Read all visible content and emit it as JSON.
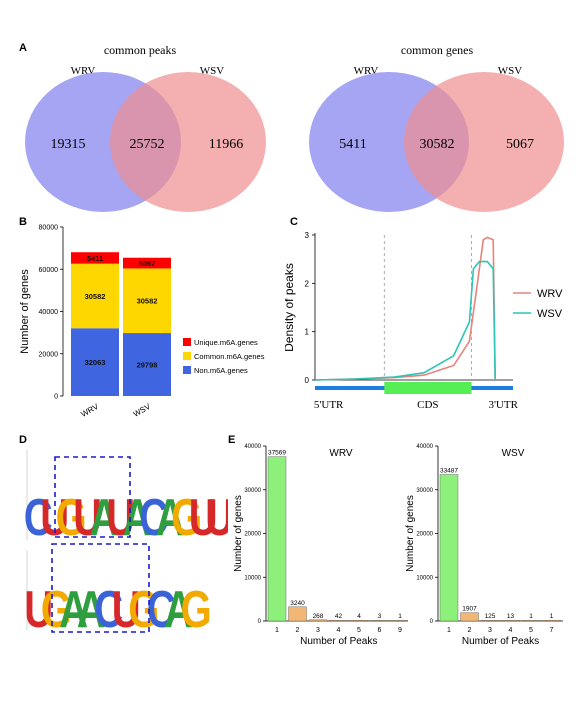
{
  "panels": {
    "a": "A",
    "b": "B",
    "c": "C",
    "d": "D",
    "e": "E"
  },
  "venn": [
    {
      "title": "common peaks",
      "left_label": "WRV",
      "right_label": "WSV",
      "left_only": "19315",
      "overlap": "25752",
      "right_only": "11966"
    },
    {
      "title": "common genes",
      "left_label": "WRV",
      "right_label": "WSV",
      "left_only": "5411",
      "overlap": "30582",
      "right_only": "5067"
    }
  ],
  "colors": {
    "wrv_venn": "#8f8ff0",
    "wsv_venn": "#f08f8f",
    "unique": "#ff0000",
    "common": "#ffd700",
    "non": "#3f66e0",
    "wrv_line": "#e8837a",
    "wsv_line": "#2ec4b6",
    "cds": "#55ee55",
    "utr": "#1f7fe0",
    "peak_bar": "#8cf07a",
    "peak_bar_alt": "#f2b774"
  },
  "chart_data": [
    {
      "type": "bar",
      "stacked": true,
      "categories": [
        "WRV",
        "WSV"
      ],
      "series": [
        {
          "name": "Non.m6A.genes",
          "values": [
            32063,
            29798
          ],
          "labels": [
            "32063",
            "29798"
          ]
        },
        {
          "name": "Common.m6A.genes",
          "values": [
            30582,
            30582
          ],
          "labels": [
            "30582",
            "30582"
          ]
        },
        {
          "name": "Unique.m6A.genes",
          "values": [
            5411,
            5067
          ],
          "labels": [
            "5411",
            "5067"
          ]
        }
      ],
      "ylabel": "Number of genes",
      "ylim": [
        0,
        80000
      ],
      "yticks": [
        "0",
        "20000",
        "40000",
        "60000",
        "80000"
      ],
      "legend": [
        "Unique.m6A.genes",
        "Common.m6A.genes",
        "Non.m6A.genes"
      ],
      "legend_position": "right"
    },
    {
      "type": "line",
      "ylabel": "Density of peaks",
      "ylim": [
        0,
        3
      ],
      "yticks": [
        "0",
        "1",
        "2",
        "3"
      ],
      "regions": [
        "5'UTR",
        "CDS",
        "3'UTR"
      ],
      "series": [
        {
          "name": "WRV",
          "x": [
            0,
            0.2,
            0.4,
            0.55,
            0.7,
            0.78,
            0.82,
            0.85,
            0.87,
            0.9,
            0.91
          ],
          "y": [
            0,
            0.02,
            0.05,
            0.1,
            0.3,
            0.8,
            2.0,
            2.9,
            2.95,
            2.9,
            0
          ]
        },
        {
          "name": "WSV",
          "x": [
            0,
            0.2,
            0.4,
            0.55,
            0.7,
            0.78,
            0.8,
            0.83,
            0.87,
            0.9,
            0.91
          ],
          "y": [
            0,
            0.02,
            0.06,
            0.15,
            0.5,
            1.2,
            2.3,
            2.45,
            2.45,
            2.3,
            0
          ]
        }
      ],
      "legend_position": "right"
    },
    {
      "type": "bar",
      "title": "WRV",
      "categories": [
        "1",
        "2",
        "3",
        "4",
        "5",
        "6",
        "9"
      ],
      "values": [
        37569,
        3240,
        268,
        42,
        4,
        3,
        1
      ],
      "labels": [
        "37569",
        "3240",
        "268",
        "42",
        "4",
        "3",
        "1"
      ],
      "xlabel": "Number of Peaks",
      "ylabel": "Number of genes",
      "ylim": [
        0,
        40000
      ],
      "yticks": [
        "0",
        "10000",
        "20000",
        "30000",
        "40000"
      ]
    },
    {
      "type": "bar",
      "title": "WSV",
      "categories": [
        "1",
        "2",
        "3",
        "4",
        "5",
        "7"
      ],
      "values": [
        33487,
        1907,
        125,
        13,
        1,
        1
      ],
      "labels": [
        "33487",
        "1907",
        "125",
        "13",
        "1",
        "1"
      ],
      "xlabel": "Number of Peaks",
      "ylabel": "Number of genes",
      "ylim": [
        0,
        40000
      ],
      "yticks": [
        "0",
        "10000",
        "20000",
        "30000",
        "40000"
      ]
    }
  ],
  "motifs": [
    {
      "letters": [
        "C",
        "U",
        "G",
        "U",
        "A",
        "U",
        "A",
        "C",
        "A",
        "G",
        "U",
        "U"
      ],
      "colors": [
        "#3b63d8",
        "#d62828",
        "#f2a900",
        "#d62828",
        "#2e9e3e",
        "#d62828",
        "#2e9e3e",
        "#3b63d8",
        "#2e9e3e",
        "#f2a900",
        "#d62828",
        "#d62828"
      ]
    },
    {
      "letters": [
        "U",
        "G",
        "A",
        "A",
        "C",
        "U",
        "G",
        "C",
        "A",
        "G"
      ],
      "colors": [
        "#d62828",
        "#f2a900",
        "#2e9e3e",
        "#2e9e3e",
        "#3b63d8",
        "#d62828",
        "#f2a900",
        "#3b63d8",
        "#2e9e3e",
        "#f2a900"
      ]
    }
  ]
}
